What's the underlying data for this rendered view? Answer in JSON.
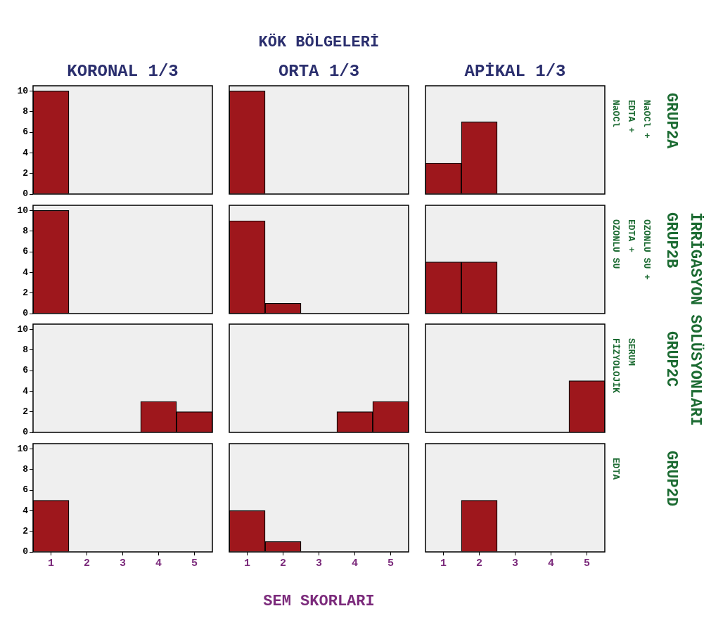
{
  "chart_data": [
    {
      "type": "bar",
      "title": "KORONAL 1/3",
      "categories": [
        "1",
        "2",
        "3",
        "4",
        "5"
      ],
      "values": [
        10,
        0,
        0,
        0,
        0
      ],
      "color": "#9e171c",
      "ylim": [
        0,
        10.5
      ],
      "yticks": [
        0,
        2,
        4,
        6,
        8,
        10
      ],
      "grid": false,
      "tick_labels": "y"
    },
    {
      "type": "bar",
      "title": "ORTA 1/3",
      "annotations": [
        "KÖK BÖLGELERİ"
      ],
      "categories": [
        "1",
        "2",
        "3",
        "4",
        "5"
      ],
      "values": [
        10,
        0,
        0,
        0,
        0
      ],
      "color": "#9e171c",
      "ylim": [
        0,
        10.5
      ],
      "yticks": [
        0,
        2,
        4,
        6,
        8,
        10
      ],
      "grid": false,
      "tick_labels": false
    },
    {
      "type": "bar",
      "title": "APİKAL 1/3",
      "y2label": "NaOCl + EDTA + NaOCl",
      "annotations": [
        "GRUP2A",
        "İRRİGASYON SOLÜSYONLARI"
      ],
      "categories": [
        "1",
        "2",
        "3",
        "4",
        "5"
      ],
      "values": [
        3,
        7,
        0,
        0,
        0
      ],
      "color": "#9e171c",
      "ylim": [
        0,
        10.5
      ],
      "yticks": [
        0,
        2,
        4,
        6,
        8,
        10
      ],
      "grid": false,
      "tick_labels": false
    },
    {
      "type": "bar",
      "categories": [
        "1",
        "2",
        "3",
        "4",
        "5"
      ],
      "values": [
        10,
        0,
        0,
        0,
        0
      ],
      "color": "#9e171c",
      "ylim": [
        0,
        10.5
      ],
      "yticks": [
        0,
        2,
        4,
        6,
        8,
        10
      ],
      "grid": false,
      "tick_labels": "y"
    },
    {
      "type": "bar",
      "categories": [
        "1",
        "2",
        "3",
        "4",
        "5"
      ],
      "values": [
        9,
        1,
        0,
        0,
        0
      ],
      "color": "#9e171c",
      "ylim": [
        0,
        10.5
      ],
      "yticks": [
        0,
        2,
        4,
        6,
        8,
        10
      ],
      "grid": false,
      "tick_labels": false
    },
    {
      "type": "bar",
      "y2label": "OZONLU SU + EDTA + OZONLU SU",
      "annotations": [
        "GRUP2B"
      ],
      "categories": [
        "1",
        "2",
        "3",
        "4",
        "5"
      ],
      "values": [
        5,
        5,
        0,
        0,
        0
      ],
      "color": "#9e171c",
      "ylim": [
        0,
        10.5
      ],
      "yticks": [
        0,
        2,
        4,
        6,
        8,
        10
      ],
      "grid": false,
      "tick_labels": false
    },
    {
      "type": "bar",
      "categories": [
        "1",
        "2",
        "3",
        "4",
        "5"
      ],
      "values": [
        0,
        0,
        0,
        3,
        2
      ],
      "color": "#9e171c",
      "ylim": [
        0,
        10.5
      ],
      "yticks": [
        0,
        2,
        4,
        6,
        8,
        10
      ],
      "grid": false,
      "tick_labels": "y"
    },
    {
      "type": "bar",
      "categories": [
        "1",
        "2",
        "3",
        "4",
        "5"
      ],
      "values": [
        0,
        0,
        0,
        2,
        3
      ],
      "color": "#9e171c",
      "ylim": [
        0,
        10.5
      ],
      "yticks": [
        0,
        2,
        4,
        6,
        8,
        10
      ],
      "grid": false,
      "tick_labels": false
    },
    {
      "type": "bar",
      "y2label": "SERUM FİZYOLOJİK",
      "annotations": [
        "GRUP2C"
      ],
      "categories": [
        "1",
        "2",
        "3",
        "4",
        "5"
      ],
      "values": [
        0,
        0,
        0,
        0,
        5
      ],
      "color": "#9e171c",
      "ylim": [
        0,
        10.5
      ],
      "yticks": [
        0,
        2,
        4,
        6,
        8,
        10
      ],
      "grid": false,
      "tick_labels": false
    },
    {
      "type": "bar",
      "categories": [
        "1",
        "2",
        "3",
        "4",
        "5"
      ],
      "values": [
        5,
        0,
        0,
        0,
        0
      ],
      "color": "#9e171c",
      "ylim": [
        0,
        10.5
      ],
      "yticks": [
        0,
        2,
        4,
        6,
        8,
        10
      ],
      "grid": false
    },
    {
      "type": "bar",
      "xlabel": "SEM SKORLARI",
      "categories": [
        "1",
        "2",
        "3",
        "4",
        "5"
      ],
      "values": [
        4,
        1,
        0,
        0,
        0
      ],
      "color": "#9e171c",
      "ylim": [
        0,
        10.5
      ],
      "yticks": [
        0,
        2,
        4,
        6,
        8,
        10
      ],
      "grid": false,
      "tick_labels": "x"
    },
    {
      "type": "bar",
      "y2label": "EDTA",
      "annotations": [
        "GRUP2D"
      ],
      "categories": [
        "1",
        "2",
        "3",
        "4",
        "5"
      ],
      "values": [
        0,
        5,
        0,
        0,
        0
      ],
      "color": "#9e171c",
      "ylim": [
        0,
        10.5
      ],
      "yticks": [
        0,
        2,
        4,
        6,
        8,
        10
      ],
      "grid": false,
      "tick_labels": "x"
    }
  ]
}
